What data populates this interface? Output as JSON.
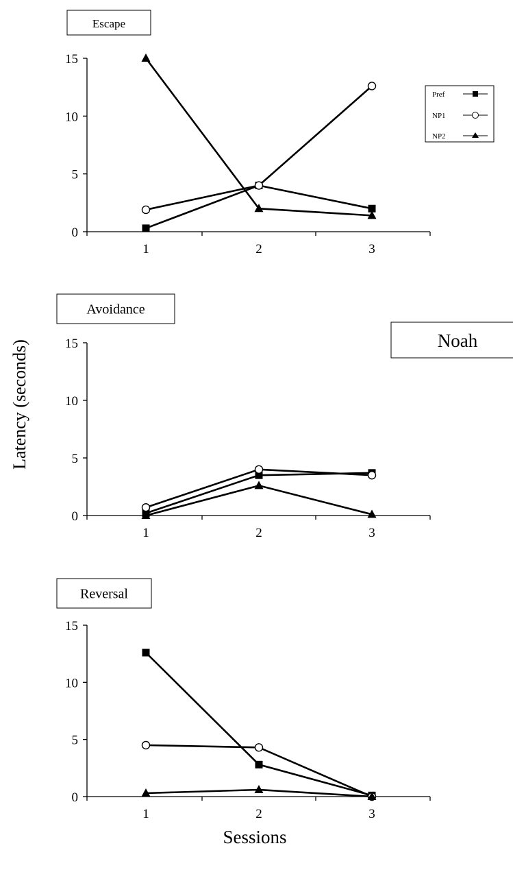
{
  "figure": {
    "ylabel": "Latency (seconds)",
    "xlabel": "Sessions",
    "subject_label": "Noah"
  },
  "legend": {
    "items": [
      {
        "label": "Pref",
        "marker": "square-filled"
      },
      {
        "label": "NP1",
        "marker": "circle-open"
      },
      {
        "label": "NP2",
        "marker": "triangle-filled"
      }
    ]
  },
  "colors": {
    "line": "#000000",
    "background": "#ffffff"
  },
  "chart_data": [
    {
      "type": "line",
      "title": "Escape",
      "categories": [
        "1",
        "2",
        "3"
      ],
      "ylim": [
        0,
        15
      ],
      "yticks": [
        0,
        5,
        10,
        15
      ],
      "grid": false,
      "legend_position": "right",
      "series": [
        {
          "name": "Pref",
          "values": [
            0.3,
            4.0,
            2.0
          ]
        },
        {
          "name": "NP1",
          "values": [
            1.9,
            4.0,
            12.6
          ]
        },
        {
          "name": "NP2",
          "values": [
            15.0,
            2.0,
            1.4
          ]
        }
      ]
    },
    {
      "type": "line",
      "title": "Avoidance",
      "categories": [
        "1",
        "2",
        "3"
      ],
      "ylim": [
        0,
        15
      ],
      "yticks": [
        0,
        5,
        10,
        15
      ],
      "grid": false,
      "series": [
        {
          "name": "Pref",
          "values": [
            0.2,
            3.5,
            3.7
          ]
        },
        {
          "name": "NP1",
          "values": [
            0.7,
            4.0,
            3.5
          ]
        },
        {
          "name": "NP2",
          "values": [
            0.0,
            2.6,
            0.1
          ]
        }
      ]
    },
    {
      "type": "line",
      "title": "Reversal",
      "categories": [
        "1",
        "2",
        "3"
      ],
      "ylim": [
        0,
        15
      ],
      "yticks": [
        0,
        5,
        10,
        15
      ],
      "grid": false,
      "series": [
        {
          "name": "Pref",
          "values": [
            12.6,
            2.8,
            0.1
          ]
        },
        {
          "name": "NP1",
          "values": [
            4.5,
            4.3,
            0.0
          ]
        },
        {
          "name": "NP2",
          "values": [
            0.3,
            0.6,
            0.0
          ]
        }
      ]
    }
  ]
}
